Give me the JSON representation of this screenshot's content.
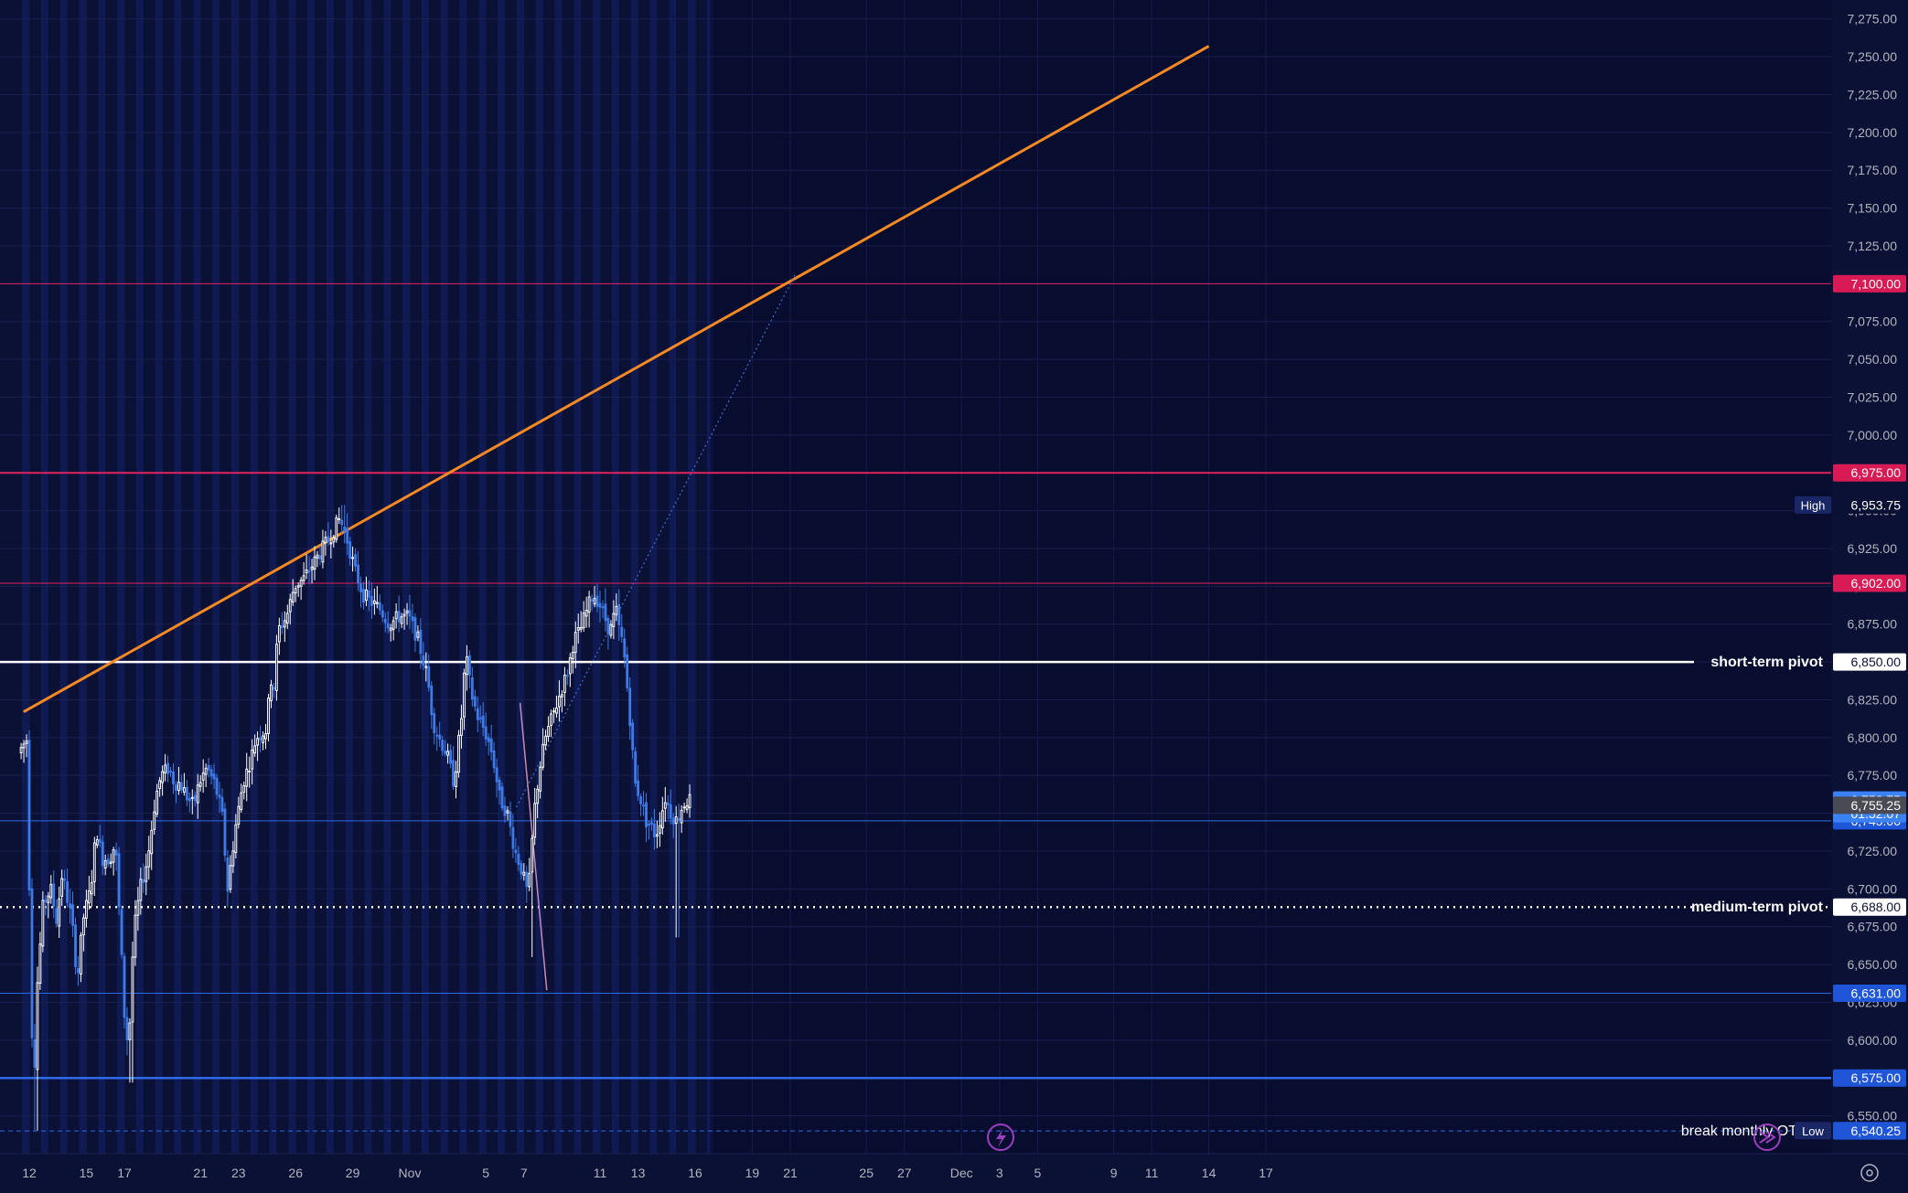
{
  "chart_data": {
    "type": "candlestick",
    "y_axis": {
      "min": 6525,
      "max": 7287.5,
      "ticks": [
        "7,275.00",
        "7,250.00",
        "7,225.00",
        "7,200.00",
        "7,175.00",
        "7,150.00",
        "7,125.00",
        "7,100.00",
        "7,075.00",
        "7,050.00",
        "7,025.00",
        "7,000.00",
        "6,975.00",
        "6,950.00",
        "6,925.00",
        "6,900.00",
        "6,875.00",
        "6,850.00",
        "6,825.00",
        "6,800.00",
        "6,775.00",
        "6,750.00",
        "6,725.00",
        "6,700.00",
        "6,675.00",
        "6,650.00",
        "6,625.00",
        "6,600.00",
        "6,575.00",
        "6,550.00"
      ]
    },
    "x_axis": {
      "labels": [
        {
          "text": "12",
          "day": 0
        },
        {
          "text": "15",
          "day": 3
        },
        {
          "text": "17",
          "day": 5
        },
        {
          "text": "21",
          "day": 9
        },
        {
          "text": "23",
          "day": 11
        },
        {
          "text": "26",
          "day": 14
        },
        {
          "text": "29",
          "day": 17
        },
        {
          "text": "Nov",
          "day": 20
        },
        {
          "text": "5",
          "day": 24
        },
        {
          "text": "7",
          "day": 26
        },
        {
          "text": "11",
          "day": 30
        },
        {
          "text": "13",
          "day": 32
        },
        {
          "text": "16",
          "day": 35
        },
        {
          "text": "19",
          "day": 38
        },
        {
          "text": "21",
          "day": 40
        },
        {
          "text": "25",
          "day": 44
        },
        {
          "text": "27",
          "day": 46
        },
        {
          "text": "Dec",
          "day": 49
        },
        {
          "text": "3",
          "day": 51
        },
        {
          "text": "5",
          "day": 53
        },
        {
          "text": "9",
          "day": 57
        },
        {
          "text": "11",
          "day": 59
        },
        {
          "text": "14",
          "day": 62
        },
        {
          "text": "17",
          "day": 65
        }
      ]
    },
    "horizontal_levels": [
      {
        "value": 7100,
        "price_label": "7,100.00",
        "color": "#e0245e",
        "style": "solid",
        "weight": 1
      },
      {
        "value": 6975,
        "price_label": "6,975.00",
        "color": "#e0245e",
        "style": "solid",
        "weight": 2
      },
      {
        "value": 6902,
        "price_label": "6,902.00",
        "color": "#e0245e",
        "style": "solid",
        "weight": 1
      },
      {
        "value": 6850,
        "price_label": "6,850.00",
        "color": "#ffffff",
        "style": "solid",
        "weight": 2.5,
        "text": "short-term pivot"
      },
      {
        "value": 6745,
        "price_label": "6,745.00",
        "color": "#2f6be6",
        "style": "solid",
        "weight": 1
      },
      {
        "value": 6688,
        "price_label": "6,688.00",
        "color": "#ffffff",
        "style": "dotted",
        "weight": 2.5,
        "text": "medium-term pivot"
      },
      {
        "value": 6631,
        "price_label": "6,631.00",
        "color": "#2f6be6",
        "style": "solid",
        "weight": 1
      },
      {
        "value": 6575,
        "price_label": "6,575.00",
        "color": "#2f6be6",
        "style": "solid",
        "weight": 2.5
      },
      {
        "value": 6540,
        "price_label": "6,540.00",
        "color": "#2f6be6",
        "style": "dashed",
        "weight": 1,
        "text": "break monthly OT"
      }
    ],
    "markers": {
      "high": {
        "label": "High",
        "value": "6,953.75",
        "price": 6953.75
      },
      "low": {
        "label": "Low",
        "value": "6,540.25",
        "price": 6540.25
      },
      "last": {
        "price": 6758.75,
        "value": "6,758.75",
        "countdown": "01:52:07"
      },
      "prev": {
        "price": 6755.25,
        "value": "6,755.25"
      }
    },
    "trendlines": [
      {
        "color": "#f58a25",
        "from": {
          "day": -0.3,
          "price": 6817
        },
        "to": {
          "day": 62,
          "price": 7257
        },
        "width": 3,
        "dash": ""
      },
      {
        "color": "#3d6fd8",
        "from": {
          "day": 25.6,
          "price": 6754
        },
        "to": {
          "day": 40.3,
          "price": 7107
        },
        "width": 1.2,
        "dash": "2,3"
      },
      {
        "color": "#c88ab8",
        "from": {
          "day": 25.8,
          "price": 6823
        },
        "to": {
          "day": 27.2,
          "price": 6633
        },
        "width": 1.5,
        "dash": ""
      }
    ],
    "series_hint": {
      "start_day": -0.5,
      "end_day": 35.8,
      "bars_per_day": 7,
      "anchors": [
        [
          -0.5,
          6790
        ],
        [
          0.0,
          6800
        ],
        [
          0.1,
          6665
        ],
        [
          0.3,
          6560
        ],
        [
          0.45,
          6630
        ],
        [
          0.8,
          6690
        ],
        [
          1.2,
          6700
        ],
        [
          1.5,
          6680
        ],
        [
          1.8,
          6710
        ],
        [
          2.3,
          6680
        ],
        [
          2.6,
          6640
        ],
        [
          2.9,
          6680
        ],
        [
          3.3,
          6700
        ],
        [
          3.6,
          6740
        ],
        [
          3.9,
          6720
        ],
        [
          4.3,
          6720
        ],
        [
          4.6,
          6730
        ],
        [
          4.9,
          6660
        ],
        [
          5.1,
          6610
        ],
        [
          5.3,
          6595
        ],
        [
          5.55,
          6670
        ],
        [
          5.9,
          6700
        ],
        [
          6.3,
          6720
        ],
        [
          6.7,
          6760
        ],
        [
          7.0,
          6775
        ],
        [
          7.4,
          6780
        ],
        [
          7.7,
          6770
        ],
        [
          8.0,
          6770
        ],
        [
          8.4,
          6760
        ],
        [
          8.7,
          6755
        ],
        [
          9.0,
          6770
        ],
        [
          9.4,
          6780
        ],
        [
          9.8,
          6770
        ],
        [
          10.2,
          6750
        ],
        [
          10.5,
          6700
        ],
        [
          10.9,
          6740
        ],
        [
          11.3,
          6770
        ],
        [
          11.7,
          6785
        ],
        [
          12.0,
          6800
        ],
        [
          12.5,
          6805
        ],
        [
          12.8,
          6840
        ],
        [
          13.0,
          6830
        ],
        [
          13.1,
          6870
        ],
        [
          13.6,
          6880
        ],
        [
          14.0,
          6900
        ],
        [
          14.5,
          6905
        ],
        [
          15.0,
          6915
        ],
        [
          15.5,
          6925
        ],
        [
          16.0,
          6935
        ],
        [
          16.4,
          6945
        ],
        [
          16.8,
          6930
        ],
        [
          17.2,
          6910
        ],
        [
          17.6,
          6895
        ],
        [
          18.0,
          6890
        ],
        [
          18.5,
          6885
        ],
        [
          19.0,
          6875
        ],
        [
          19.5,
          6880
        ],
        [
          20.0,
          6880
        ],
        [
          20.5,
          6865
        ],
        [
          21.0,
          6840
        ],
        [
          21.3,
          6810
        ],
        [
          21.6,
          6800
        ],
        [
          22.0,
          6790
        ],
        [
          22.4,
          6770
        ],
        [
          22.8,
          6815
        ],
        [
          23.0,
          6855
        ],
        [
          23.3,
          6830
        ],
        [
          23.6,
          6815
        ],
        [
          24.0,
          6805
        ],
        [
          24.4,
          6790
        ],
        [
          24.8,
          6760
        ],
        [
          25.2,
          6750
        ],
        [
          25.6,
          6725
        ],
        [
          25.9,
          6715
        ],
        [
          26.3,
          6695
        ],
        [
          26.6,
          6750
        ],
        [
          26.9,
          6780
        ],
        [
          27.2,
          6800
        ],
        [
          27.6,
          6815
        ],
        [
          28.0,
          6830
        ],
        [
          28.4,
          6845
        ],
        [
          28.7,
          6865
        ],
        [
          29.0,
          6870
        ],
        [
          29.4,
          6885
        ],
        [
          29.7,
          6895
        ],
        [
          30.0,
          6890
        ],
        [
          30.3,
          6880
        ],
        [
          30.6,
          6870
        ],
        [
          30.9,
          6885
        ],
        [
          31.1,
          6870
        ],
        [
          31.3,
          6860
        ],
        [
          31.6,
          6820
        ],
        [
          31.9,
          6770
        ],
        [
          32.2,
          6760
        ],
        [
          32.5,
          6745
        ],
        [
          32.8,
          6740
        ],
        [
          33.0,
          6735
        ],
        [
          33.2,
          6745
        ],
        [
          33.5,
          6760
        ],
        [
          33.8,
          6750
        ],
        [
          34.1,
          6745
        ],
        [
          34.4,
          6755
        ],
        [
          34.7,
          6758.75
        ]
      ],
      "low_dip": {
        "day": 0.3,
        "low": 6540.25
      },
      "high_peak": {
        "day": 16.45,
        "high": 6953.75
      },
      "dip_oct": {
        "day": 5.3,
        "low": 6572
      },
      "dip_nov": {
        "day": 26.35,
        "low": 6655
      },
      "dip_nov13": {
        "day": 34.0,
        "low": 6668
      }
    }
  }
}
